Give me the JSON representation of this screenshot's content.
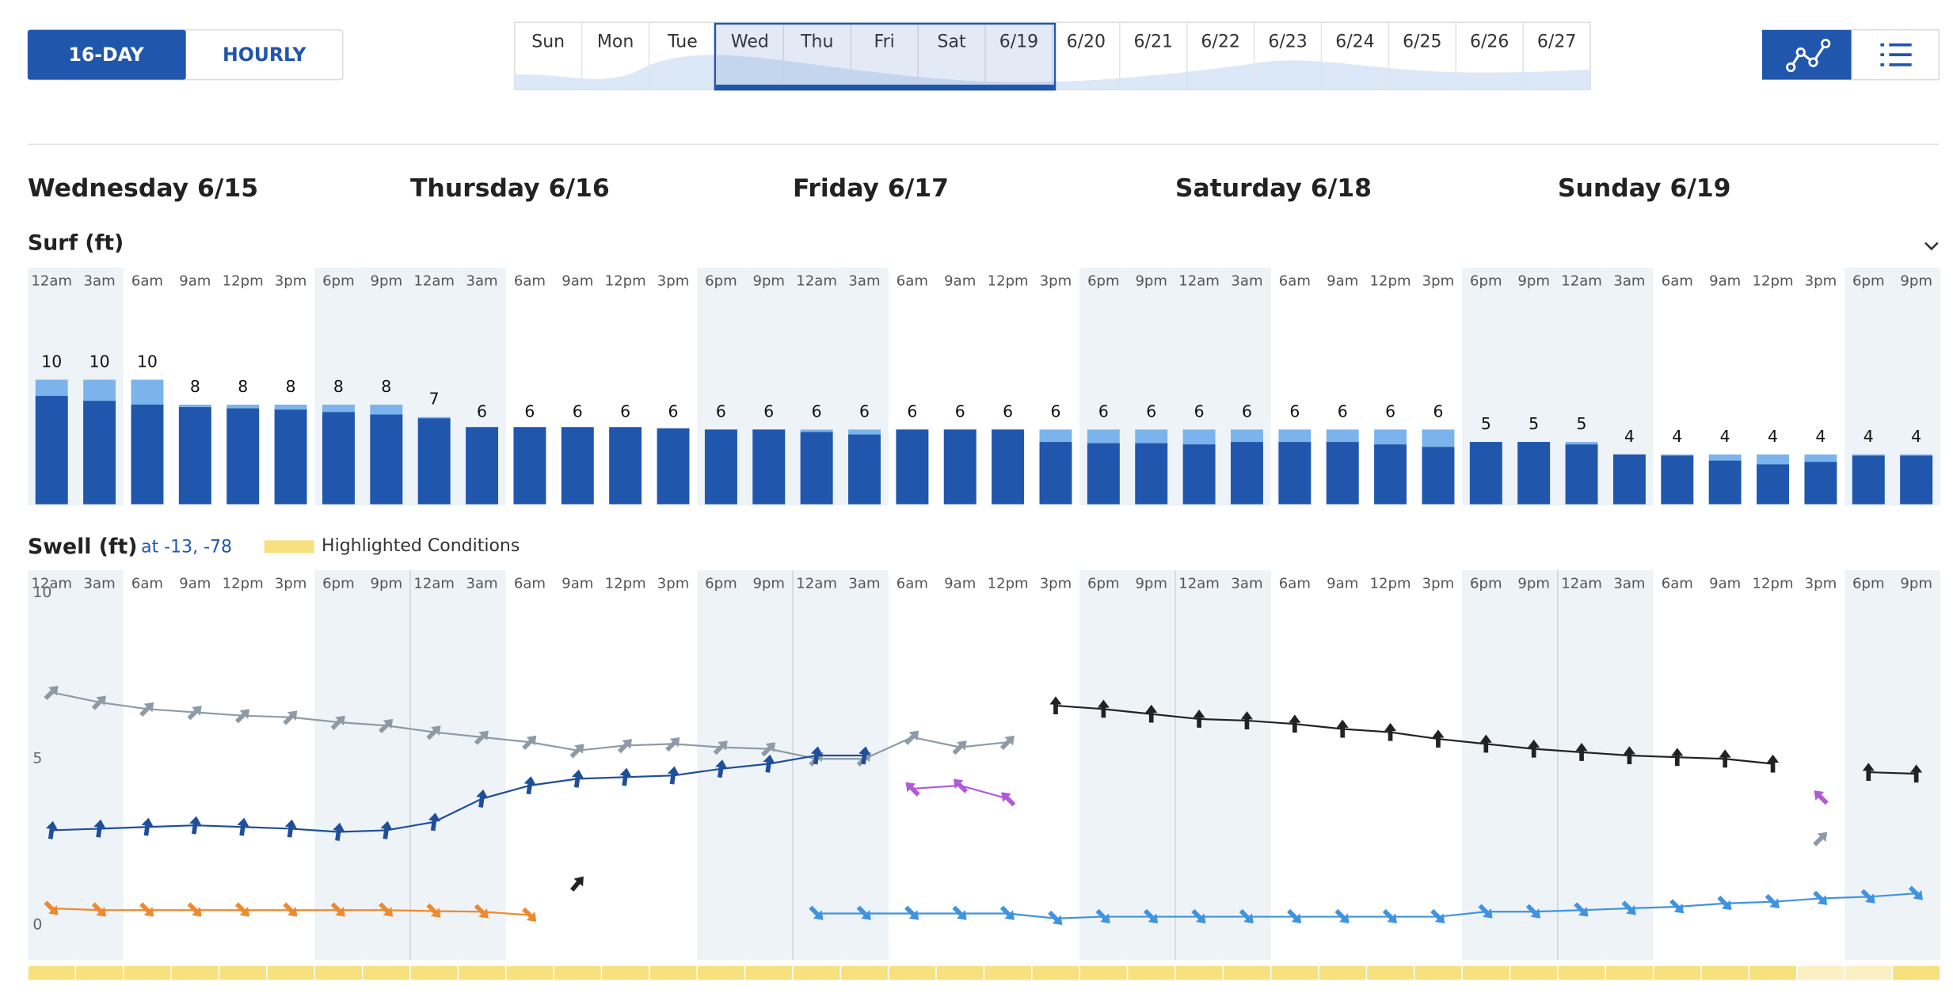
{
  "toolbar": {
    "view_buttons": [
      "16-DAY",
      "HOURLY"
    ]
  },
  "day_strip": [
    "Sun",
    "Mon",
    "Tue",
    "Wed",
    "Thu",
    "Fri",
    "Sat",
    "6/19",
    "6/20",
    "6/21",
    "6/22",
    "6/23",
    "6/24",
    "6/25",
    "6/26",
    "6/27"
  ],
  "day_headers": [
    "Wednesday 6/15",
    "Thursday 6/16",
    "Friday 6/17",
    "Saturday 6/18",
    "Sunday 6/19"
  ],
  "time_labels": [
    "12am",
    "3am",
    "6am",
    "9am",
    "12pm",
    "3pm",
    "6pm",
    "9pm"
  ],
  "surf": {
    "title": "Surf (ft)",
    "values": [
      10,
      10,
      10,
      8,
      8,
      8,
      8,
      8,
      7,
      6,
      6,
      6,
      6,
      6,
      6,
      6,
      6,
      6,
      6,
      6,
      6,
      6,
      6,
      6,
      6,
      6,
      6,
      6,
      6,
      6,
      5,
      5,
      5,
      4,
      4,
      4,
      4,
      4,
      4,
      4
    ],
    "min_values": [
      8.7,
      8.3,
      8.0,
      7.8,
      7.7,
      7.6,
      7.4,
      7.2,
      6.9,
      6.2,
      6.2,
      6.2,
      6.2,
      6.1,
      6.0,
      6.0,
      5.8,
      5.6,
      6.0,
      6.0,
      6.0,
      5.0,
      4.9,
      4.9,
      4.8,
      5.0,
      5.0,
      5.0,
      4.8,
      4.6,
      5.0,
      5.0,
      4.8,
      4.0,
      3.9,
      3.5,
      3.2,
      3.4,
      3.9,
      3.9
    ]
  },
  "swell": {
    "title": "Swell (ft)",
    "location": "at -13, -78",
    "legend": "Highlighted Conditions",
    "ylim": [
      0,
      10
    ],
    "yticks": [
      0,
      5,
      10
    ],
    "series": [
      {
        "color": "#8e9ba6",
        "values": [
          7.0,
          6.7,
          6.5,
          6.4,
          6.3,
          6.25,
          6.1,
          6.0,
          5.8,
          5.65,
          5.5,
          5.25,
          5.4,
          5.45,
          5.35,
          5.3,
          5.0,
          5.0,
          5.65,
          5.35,
          5.5,
          null,
          null,
          null,
          null,
          null,
          null,
          null,
          null,
          null,
          null,
          null,
          null,
          null,
          null,
          null,
          null,
          2.6,
          null,
          null
        ]
      },
      {
        "color": "#1f4e9a",
        "values": [
          2.85,
          2.9,
          2.95,
          3.0,
          2.95,
          2.9,
          2.8,
          2.85,
          3.1,
          3.8,
          4.2,
          4.4,
          4.45,
          4.5,
          4.7,
          4.85,
          5.1,
          5.1,
          null,
          null,
          null,
          null,
          null,
          null,
          null,
          null,
          null,
          null,
          null,
          null,
          null,
          null,
          null,
          null,
          null,
          null,
          null,
          null,
          null,
          null
        ]
      },
      {
        "color": "#ee8a2e",
        "values": [
          0.5,
          0.45,
          0.45,
          0.45,
          0.45,
          0.45,
          0.45,
          0.45,
          0.42,
          0.4,
          0.3,
          null,
          null,
          null,
          null,
          null,
          null,
          null,
          null,
          null,
          null,
          null,
          null,
          null,
          null,
          null,
          null,
          null,
          null,
          null,
          null,
          null,
          null,
          null,
          null,
          null,
          null,
          null,
          null,
          null
        ]
      },
      {
        "color": "#222222",
        "values": [
          null,
          null,
          null,
          null,
          null,
          null,
          null,
          null,
          null,
          null,
          null,
          1.25,
          null,
          null,
          null,
          null,
          null,
          null,
          null,
          null,
          null,
          6.6,
          6.5,
          6.35,
          6.2,
          6.15,
          6.05,
          5.9,
          5.8,
          5.6,
          5.45,
          5.3,
          5.2,
          5.1,
          5.05,
          5.0,
          4.85,
          null,
          4.6,
          4.55
        ]
      },
      {
        "color": "#b05ad8",
        "values": [
          null,
          null,
          null,
          null,
          null,
          null,
          null,
          null,
          null,
          null,
          null,
          null,
          null,
          null,
          null,
          null,
          null,
          null,
          4.1,
          4.2,
          3.8,
          null,
          null,
          null,
          null,
          null,
          null,
          null,
          null,
          null,
          null,
          null,
          null,
          null,
          null,
          null,
          null,
          3.85,
          null,
          null
        ]
      },
      {
        "color": "#3f93e0",
        "values": [
          null,
          null,
          null,
          null,
          null,
          null,
          null,
          null,
          null,
          null,
          null,
          null,
          null,
          null,
          null,
          null,
          0.35,
          0.35,
          0.35,
          0.35,
          0.35,
          0.2,
          0.25,
          0.25,
          0.25,
          0.25,
          0.25,
          0.25,
          0.25,
          0.25,
          0.4,
          0.4,
          0.45,
          0.5,
          0.55,
          0.65,
          0.7,
          0.8,
          0.85,
          0.95
        ]
      }
    ]
  }
}
